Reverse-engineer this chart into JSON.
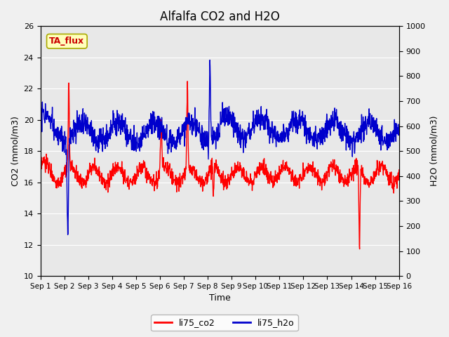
{
  "title": "Alfalfa CO2 and H2O",
  "xlabel": "Time",
  "ylabel_left": "CO2 (mmol/m3)",
  "ylabel_right": "H2O (mmol/m3)",
  "ylim_left": [
    10,
    26
  ],
  "ylim_right": [
    0,
    1000
  ],
  "yticks_left": [
    10,
    12,
    14,
    16,
    18,
    20,
    22,
    24,
    26
  ],
  "yticks_right": [
    0,
    100,
    200,
    300,
    400,
    500,
    600,
    700,
    800,
    900,
    1000
  ],
  "xticklabels": [
    "Sep 1",
    "Sep 2",
    "Sep 3",
    "Sep 4",
    "Sep 5",
    "Sep 6",
    "Sep 7",
    "Sep 8",
    "Sep 9",
    "Sep 10",
    "Sep 11",
    "Sep 12",
    "Sep 13",
    "Sep 14",
    "Sep 15",
    "Sep 16"
  ],
  "co2_color": "#ff0000",
  "h2o_color": "#0000cc",
  "legend_label_co2": "li75_co2",
  "legend_label_h2o": "li75_h2o",
  "annotation_text": "TA_flux",
  "plot_bg_color": "#e8e8e8",
  "fig_bg_color": "#f0f0f0",
  "line_width": 1.0,
  "fontsize_title": 12,
  "fontsize_axis": 9,
  "fontsize_ticks": 8,
  "fontsize_legend": 9,
  "fontsize_annot": 9
}
